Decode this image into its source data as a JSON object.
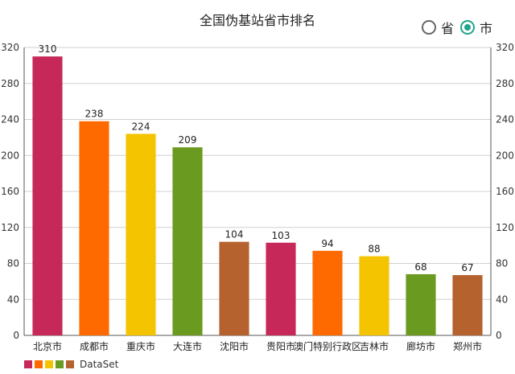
{
  "title": "全国伪基站省市排名",
  "toggle": {
    "option_province": "省",
    "option_city": "市",
    "selected": "市"
  },
  "legend": {
    "label": "DataSet",
    "swatches": [
      "#c6285a",
      "#ff6a00",
      "#f5c400",
      "#6a9a1f",
      "#b5622e"
    ]
  },
  "chart_data": {
    "type": "bar",
    "categories": [
      "北京市",
      "成都市",
      "重庆市",
      "大连市",
      "沈阳市",
      "贵阳市",
      "澳门特别行政区",
      "吉林市",
      "廊坊市",
      "郑州市"
    ],
    "values": [
      310,
      238,
      224,
      209,
      104,
      103,
      94,
      88,
      68,
      67
    ],
    "colors": [
      "#c6285a",
      "#ff6a00",
      "#f5c400",
      "#6a9a1f",
      "#b5622e",
      "#c6285a",
      "#ff6a00",
      "#f5c400",
      "#6a9a1f",
      "#b5622e"
    ],
    "ylim": [
      0,
      320
    ],
    "yticks": [
      0,
      40,
      80,
      120,
      160,
      200,
      240,
      280,
      320
    ],
    "grid": true
  }
}
